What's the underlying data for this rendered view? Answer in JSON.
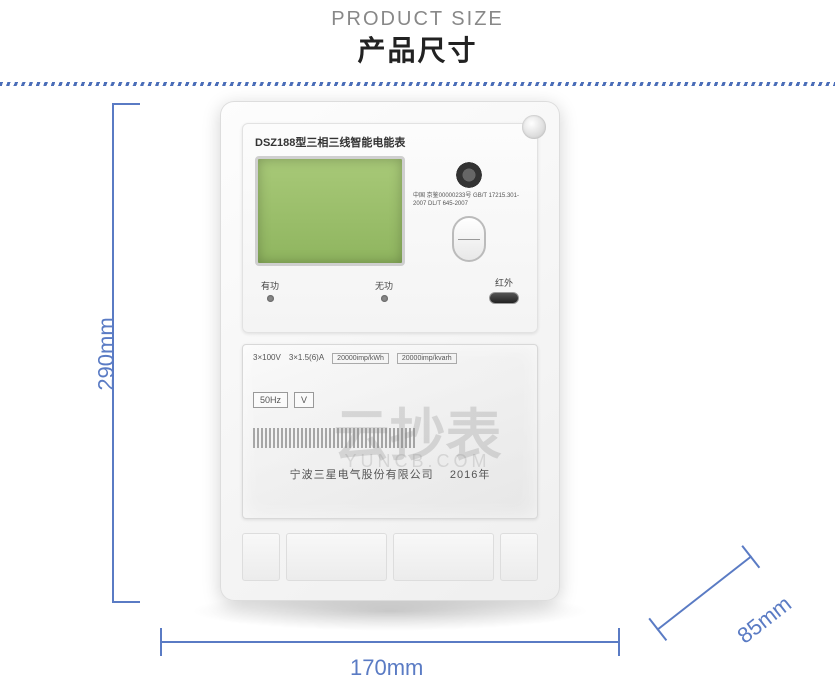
{
  "header": {
    "title_en": "PRODUCT SIZE",
    "title_cn": "产品尺寸"
  },
  "dimensions": {
    "height": "290mm",
    "width": "170mm",
    "depth": "85mm"
  },
  "meter": {
    "model": "DSZ188型三相三线智能电能表",
    "cert_lines": "中国 京鉴00000233号\nGB/T 17215.301-2007\nDL/T 645-2007",
    "indicators": {
      "active": "有功",
      "reactive": "无功",
      "ir": "红外"
    },
    "specs": {
      "voltage": "3×100V",
      "current": "3×1.5(6)A",
      "pulse1": "20000imp/kWh",
      "pulse2": "20000imp/kvarh",
      "freq": "50Hz"
    },
    "company": "宁波三星电气股份有限公司",
    "year": "2016年"
  },
  "watermark": {
    "main": "云抄表",
    "sub": "YUNCB.COM"
  },
  "colors": {
    "dim": "#5a7bc4"
  }
}
